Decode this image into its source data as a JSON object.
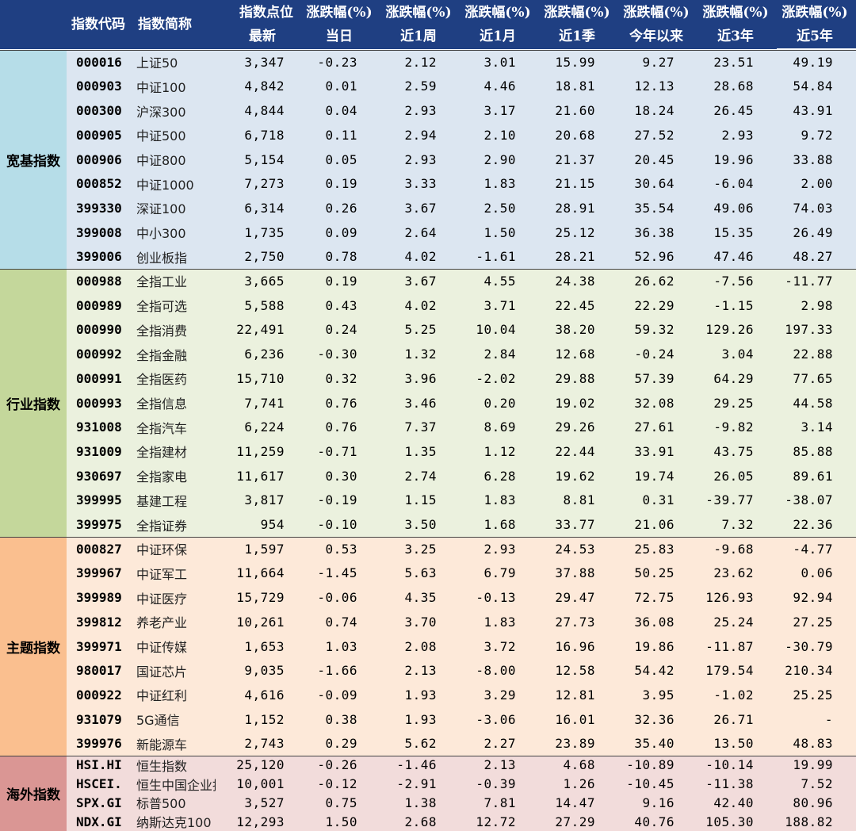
{
  "header": {
    "code_label": "指数代码",
    "name_label": "指数简称",
    "cols_top": [
      "指数点位",
      "涨跌幅(%)",
      "涨跌幅(%)",
      "涨跌幅(%)",
      "涨跌幅(%)",
      "涨跌幅(%)",
      "涨跌幅(%)",
      "涨跌幅(%)"
    ],
    "cols_bottom": [
      "最新",
      "当日",
      "近1周",
      "近1月",
      "近1季",
      "今年以来",
      "近3年",
      "近5年"
    ]
  },
  "colors": {
    "header_bg": "#1f3f82",
    "broad_label": "#b6dde8",
    "broad_body": "#dce6f1",
    "industry_label": "#c4d79b",
    "industry_body": "#ebf1de",
    "theme_label": "#fabf8f",
    "theme_body": "#fde9d9",
    "overseas_label": "#da9694",
    "overseas_body": "#f2dcdb"
  },
  "sections": [
    {
      "label": "宽基指数",
      "rows": [
        {
          "code": "000016",
          "name": "上证50",
          "v": [
            "3,347",
            "-0.23",
            "2.12",
            "3.01",
            "15.99",
            "9.27",
            "23.51",
            "49.19"
          ]
        },
        {
          "code": "000903",
          "name": "中证100",
          "v": [
            "4,842",
            "0.01",
            "2.59",
            "4.46",
            "18.81",
            "12.13",
            "28.68",
            "54.84"
          ]
        },
        {
          "code": "000300",
          "name": "沪深300",
          "v": [
            "4,844",
            "0.04",
            "2.93",
            "3.17",
            "21.60",
            "18.24",
            "26.45",
            "43.91"
          ]
        },
        {
          "code": "000905",
          "name": "中证500",
          "v": [
            "6,718",
            "0.11",
            "2.94",
            "2.10",
            "20.68",
            "27.52",
            "2.93",
            "9.72"
          ]
        },
        {
          "code": "000906",
          "name": "中证800",
          "v": [
            "5,154",
            "0.05",
            "2.93",
            "2.90",
            "21.37",
            "20.45",
            "19.96",
            "33.88"
          ]
        },
        {
          "code": "000852",
          "name": "中证1000",
          "v": [
            "7,273",
            "0.19",
            "3.33",
            "1.83",
            "21.15",
            "30.64",
            "-6.04",
            "2.00"
          ]
        },
        {
          "code": "399330",
          "name": "深证100",
          "v": [
            "6,314",
            "0.26",
            "3.67",
            "2.50",
            "28.91",
            "35.54",
            "49.06",
            "74.03"
          ]
        },
        {
          "code": "399008",
          "name": "中小300",
          "v": [
            "1,735",
            "0.09",
            "2.64",
            "1.50",
            "25.12",
            "36.38",
            "15.35",
            "26.49"
          ]
        },
        {
          "code": "399006",
          "name": "创业板指",
          "v": [
            "2,750",
            "0.78",
            "4.02",
            "-1.61",
            "28.21",
            "52.96",
            "47.46",
            "48.27"
          ]
        }
      ]
    },
    {
      "label": "行业指数",
      "rows": [
        {
          "code": "000988",
          "name": "全指工业",
          "v": [
            "3,665",
            "0.19",
            "3.67",
            "4.55",
            "24.38",
            "26.62",
            "-7.56",
            "-11.77"
          ]
        },
        {
          "code": "000989",
          "name": "全指可选",
          "v": [
            "5,588",
            "0.43",
            "4.02",
            "3.71",
            "22.45",
            "22.29",
            "-1.15",
            "2.98"
          ]
        },
        {
          "code": "000990",
          "name": "全指消费",
          "v": [
            "22,491",
            "0.24",
            "5.25",
            "10.04",
            "38.20",
            "59.32",
            "129.26",
            "197.33"
          ]
        },
        {
          "code": "000992",
          "name": "全指金融",
          "v": [
            "6,236",
            "-0.30",
            "1.32",
            "2.84",
            "12.68",
            "-0.24",
            "3.04",
            "22.88"
          ]
        },
        {
          "code": "000991",
          "name": "全指医药",
          "v": [
            "15,710",
            "0.32",
            "3.96",
            "-2.02",
            "29.88",
            "57.39",
            "64.29",
            "77.65"
          ]
        },
        {
          "code": "000993",
          "name": "全指信息",
          "v": [
            "7,741",
            "0.76",
            "3.46",
            "0.20",
            "19.02",
            "32.08",
            "29.25",
            "44.58"
          ]
        },
        {
          "code": "931008",
          "name": "全指汽车",
          "v": [
            "6,224",
            "0.76",
            "7.37",
            "8.69",
            "29.26",
            "27.61",
            "-9.82",
            "3.14"
          ]
        },
        {
          "code": "931009",
          "name": "全指建材",
          "v": [
            "11,259",
            "-0.71",
            "1.35",
            "1.12",
            "22.44",
            "33.91",
            "43.75",
            "85.88"
          ]
        },
        {
          "code": "930697",
          "name": "全指家电",
          "v": [
            "11,617",
            "0.30",
            "2.74",
            "6.28",
            "19.62",
            "19.74",
            "26.05",
            "89.61"
          ]
        },
        {
          "code": "399995",
          "name": "基建工程",
          "v": [
            "3,817",
            "-0.19",
            "1.15",
            "1.83",
            "8.81",
            "0.31",
            "-39.77",
            "-38.07"
          ]
        },
        {
          "code": "399975",
          "name": "全指证券",
          "v": [
            "954",
            "-0.10",
            "3.50",
            "1.68",
            "33.77",
            "21.06",
            "7.32",
            "22.36"
          ]
        }
      ]
    },
    {
      "label": "主题指数",
      "rows": [
        {
          "code": "000827",
          "name": "中证环保",
          "v": [
            "1,597",
            "0.53",
            "3.25",
            "2.93",
            "24.53",
            "25.83",
            "-9.68",
            "-4.77"
          ]
        },
        {
          "code": "399967",
          "name": "中证军工",
          "v": [
            "11,664",
            "-1.45",
            "5.63",
            "6.79",
            "37.88",
            "50.25",
            "23.62",
            "0.06"
          ]
        },
        {
          "code": "399989",
          "name": "中证医疗",
          "v": [
            "15,729",
            "-0.06",
            "4.35",
            "-0.13",
            "29.47",
            "72.75",
            "126.93",
            "92.94"
          ]
        },
        {
          "code": "399812",
          "name": "养老产业",
          "v": [
            "10,261",
            "0.74",
            "3.70",
            "1.83",
            "27.73",
            "36.08",
            "25.24",
            "27.25"
          ]
        },
        {
          "code": "399971",
          "name": "中证传媒",
          "v": [
            "1,653",
            "1.03",
            "2.08",
            "3.72",
            "16.96",
            "19.86",
            "-11.87",
            "-30.79"
          ]
        },
        {
          "code": "980017",
          "name": "国证芯片",
          "v": [
            "9,035",
            "-1.66",
            "2.13",
            "-8.00",
            "12.58",
            "54.42",
            "179.54",
            "210.34"
          ]
        },
        {
          "code": "000922",
          "name": "中证红利",
          "v": [
            "4,616",
            "-0.09",
            "1.93",
            "3.29",
            "12.81",
            "3.95",
            "-1.02",
            "25.25"
          ]
        },
        {
          "code": "931079",
          "name": "5G通信",
          "v": [
            "1,152",
            "0.38",
            "1.93",
            "-3.06",
            "16.01",
            "32.36",
            "26.71",
            "-"
          ]
        },
        {
          "code": "399976",
          "name": "新能源车",
          "v": [
            "2,743",
            "0.29",
            "5.62",
            "2.27",
            "23.89",
            "35.40",
            "13.50",
            "48.83"
          ]
        }
      ]
    },
    {
      "label": "海外指数",
      "rows": [
        {
          "code": "HSI.HI",
          "name": "恒生指数",
          "v": [
            "25,120",
            "-0.26",
            "-1.46",
            "2.13",
            "4.68",
            "-10.89",
            "-10.14",
            "19.99"
          ]
        },
        {
          "code": "HSCEI.",
          "name": "恒生中国企业指",
          "v": [
            "10,001",
            "-0.12",
            "-2.91",
            "-0.39",
            "1.26",
            "-10.45",
            "-11.38",
            "7.52"
          ]
        },
        {
          "code": "SPX.GI",
          "name": "标普500",
          "v": [
            "3,527",
            "0.75",
            "1.38",
            "7.81",
            "14.47",
            "9.16",
            "42.40",
            "80.96"
          ]
        },
        {
          "code": "NDX.GI",
          "name": "纳斯达克100",
          "v": [
            "12,293",
            "1.50",
            "2.68",
            "12.72",
            "27.29",
            "40.76",
            "105.30",
            "188.82"
          ]
        }
      ]
    }
  ]
}
